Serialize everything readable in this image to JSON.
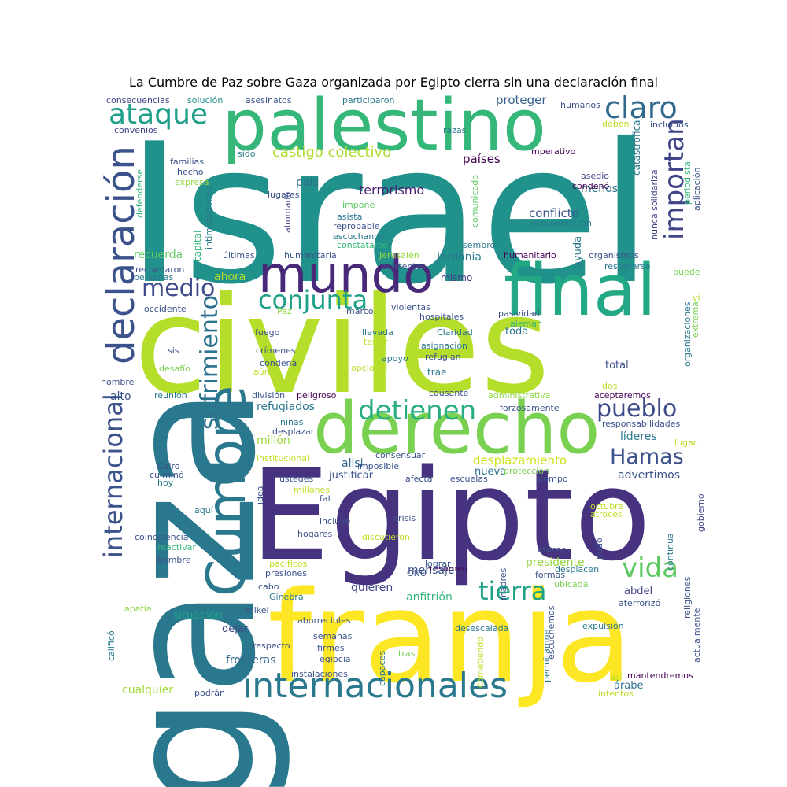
{
  "title": "La Cumbre de Paz sobre Gaza organizada por Egipto cierra sin una declaración final",
  "words": [
    {
      "t": "Israel",
      "c": "#21918c"
    },
    {
      "t": "civiles",
      "c": "#b5de2b"
    },
    {
      "t": "Egipto",
      "c": "#46327e"
    },
    {
      "t": "gaza",
      "c": "#2a788e"
    },
    {
      "t": "franja",
      "c": "#fde725"
    },
    {
      "t": "palestino",
      "c": "#35b779"
    },
    {
      "t": "derecho",
      "c": "#7ad151"
    },
    {
      "t": "final",
      "c": "#22a884"
    },
    {
      "t": "mundo",
      "c": "#482878"
    },
    {
      "t": "Cumbre",
      "c": "#2a788e"
    },
    {
      "t": "declaración",
      "c": "#3b528b"
    },
    {
      "t": "internacionales",
      "c": "#2a788e"
    },
    {
      "t": "internacional",
      "c": "#3b528b"
    },
    {
      "t": "sufrimiento",
      "c": "#2c728e"
    },
    {
      "t": "claro",
      "c": "#31688e"
    },
    {
      "t": "importan",
      "c": "#414487"
    },
    {
      "t": "conjunta",
      "c": "#1fa088"
    },
    {
      "t": "ataque",
      "c": "#1f9e89"
    },
    {
      "t": "detienen",
      "c": "#27ad81"
    },
    {
      "t": "medio",
      "c": "#3e4a89"
    },
    {
      "t": "pueblo",
      "c": "#3e4989"
    },
    {
      "t": "Hamas",
      "c": "#3b528b"
    },
    {
      "t": "vida",
      "c": "#5ec962"
    },
    {
      "t": "tierra",
      "c": "#1fa187"
    },
    {
      "t": "castigo colectivo",
      "c": "#addc30"
    },
    {
      "t": "terrorismo",
      "c": "#481f70"
    },
    {
      "t": "Jordania",
      "c": "#2a788e"
    },
    {
      "t": "recuerda",
      "c": "#5ec962"
    },
    {
      "t": "conflicto",
      "c": "#3b528b"
    },
    {
      "t": "proteger",
      "c": "#355f8d"
    },
    {
      "t": "países",
      "c": "#440154"
    },
    {
      "t": "país",
      "c": "#2d708e"
    },
    {
      "t": "menos",
      "c": "#2c728e"
    },
    {
      "t": "ahora",
      "c": "#b8de29"
    },
    {
      "t": "refugiados",
      "c": "#2a788e"
    },
    {
      "t": "millón",
      "c": "#9bd93c"
    },
    {
      "t": "alto",
      "c": "#3b528b"
    },
    {
      "t": "líderes",
      "c": "#2a788e"
    },
    {
      "t": "desplazamiento",
      "c": "#d0e11c"
    },
    {
      "t": "advertimos",
      "c": "#3b528b"
    },
    {
      "t": "alisi",
      "c": "#31688e"
    },
    {
      "t": "justificar",
      "c": "#3b528b"
    },
    {
      "t": "nueva",
      "c": "#2c728e"
    },
    {
      "t": "presidente",
      "c": "#95d840"
    },
    {
      "t": "quieren",
      "c": "#414487"
    },
    {
      "t": "anfitrión",
      "c": "#35b779"
    },
    {
      "t": "mensaje",
      "c": "#3b528b"
    },
    {
      "t": "abdel",
      "c": "#414487"
    },
    {
      "t": "situación",
      "c": "#1fa088"
    },
    {
      "t": "dejar",
      "c": "#3e4a89"
    },
    {
      "t": "fronteras",
      "c": "#31688e"
    },
    {
      "t": "cualquier",
      "c": "#a0da39"
    },
    {
      "t": "árabe",
      "c": "#2c728e"
    },
    {
      "t": "mismo",
      "c": "#433e85"
    },
    {
      "t": "toda",
      "c": "#2c728e"
    },
    {
      "t": "total",
      "c": "#3b528b"
    },
    {
      "t": "trae",
      "c": "#2a788e"
    },
    {
      "t": "capital",
      "c": "#35b779"
    },
    {
      "t": "ayuda",
      "c": "#2a788e"
    },
    {
      "t": "catastrófica",
      "c": "#2a788e"
    },
    {
      "t": "consecuencias",
      "c": "#414487"
    },
    {
      "t": "solución",
      "c": "#21918c"
    },
    {
      "t": "asesinatos",
      "c": "#3b528b"
    },
    {
      "t": "participaron",
      "c": "#2a788e"
    },
    {
      "t": "humanos",
      "c": "#3b528b"
    },
    {
      "t": "convenios",
      "c": "#414487"
    },
    {
      "t": "razas",
      "c": "#2a788e"
    },
    {
      "t": "deben",
      "c": "#bddf26"
    },
    {
      "t": "incluidos",
      "c": "#3b528b"
    },
    {
      "t": "imperativo",
      "c": "#440154"
    },
    {
      "t": "familias",
      "c": "#3b528b"
    },
    {
      "t": "hecho",
      "c": "#3b528b"
    },
    {
      "t": "expresa",
      "c": "#8fd744"
    },
    {
      "t": "sido",
      "c": "#2a788e"
    },
    {
      "t": "asedio",
      "c": "#414487"
    },
    {
      "t": "condenó",
      "c": "#440154"
    },
    {
      "t": "lugares",
      "c": "#3b528b"
    },
    {
      "t": "impone",
      "c": "#5ec962"
    },
    {
      "t": "asista",
      "c": "#2a788e"
    },
    {
      "t": "reprobable",
      "c": "#3b528b"
    },
    {
      "t": "escuchando",
      "c": "#2a788e"
    },
    {
      "t": "constatarse",
      "c": "#35b779"
    },
    {
      "t": "estupefacción",
      "c": "#2a788e"
    },
    {
      "t": "comunicado",
      "c": "#5ec962"
    },
    {
      "t": "nunca solidariza",
      "c": "#414487"
    },
    {
      "t": "periodista",
      "c": "#35b779"
    },
    {
      "t": "aplicación",
      "c": "#3b528b"
    },
    {
      "t": "defenderse",
      "c": "#35b779"
    },
    {
      "t": "intimidaciones",
      "c": "#2a788e"
    },
    {
      "t": "abordado",
      "c": "#414487"
    },
    {
      "t": "últimas",
      "c": "#3b528b"
    },
    {
      "t": "humanitaria",
      "c": "#3b528b"
    },
    {
      "t": "Jerusalén",
      "c": "#95d840"
    },
    {
      "t": "humanitario",
      "c": "#440154"
    },
    {
      "t": "organismos",
      "c": "#3b528b"
    },
    {
      "t": "sembró",
      "c": "#2a788e"
    },
    {
      "t": "asistentes",
      "c": "#3b528b"
    },
    {
      "t": "respetarse",
      "c": "#2a788e"
    },
    {
      "t": "reclamaron",
      "c": "#3b528b"
    },
    {
      "t": "personas",
      "c": "#2a788e"
    },
    {
      "t": "puede",
      "c": "#7ad151"
    },
    {
      "t": "violentas",
      "c": "#3b528b"
    },
    {
      "t": "Paz",
      "c": "#8fd744"
    },
    {
      "t": "marco",
      "c": "#3b528b"
    },
    {
      "t": "hospitales",
      "c": "#3b528b"
    },
    {
      "t": "pasividad",
      "c": "#3b528b"
    },
    {
      "t": "alemán",
      "c": "#35b779"
    },
    {
      "t": "vi",
      "c": "#b8de29"
    },
    {
      "t": "occidente",
      "c": "#3b528b"
    },
    {
      "t": "fuego",
      "c": "#3b528b"
    },
    {
      "t": "llevada",
      "c": "#2a788e"
    },
    {
      "t": "terror",
      "c": "#bddf26"
    },
    {
      "t": "Claridad",
      "c": "#2a788e"
    },
    {
      "t": "asignación",
      "c": "#2a788e"
    },
    {
      "t": "refugian",
      "c": "#3b528b"
    },
    {
      "t": "crímenes",
      "c": "#3b528b"
    },
    {
      "t": "condena",
      "c": "#3b528b"
    },
    {
      "t": "apoyo",
      "c": "#2a788e"
    },
    {
      "t": "opcional",
      "c": "#bddf26"
    },
    {
      "t": "extrema",
      "c": "#7ad151"
    },
    {
      "t": "organizaciones",
      "c": "#2a788e"
    },
    {
      "t": "sis",
      "c": "#3b528b"
    },
    {
      "t": "desafío",
      "c": "#7ad151"
    },
    {
      "t": "nombre",
      "c": "#3b528b"
    },
    {
      "t": "aún",
      "c": "#bddf26"
    },
    {
      "t": "reunión",
      "c": "#2a788e"
    },
    {
      "t": "división",
      "c": "#3b528b"
    },
    {
      "t": "peligroso",
      "c": "#440154"
    },
    {
      "t": "causante",
      "c": "#3b528b"
    },
    {
      "t": "administrativa",
      "c": "#8fd744"
    },
    {
      "t": "dos",
      "c": "#b8de29"
    },
    {
      "t": "aceptaremos",
      "c": "#440154"
    },
    {
      "t": "forzosamente",
      "c": "#3b528b"
    },
    {
      "t": "responsabilidades",
      "c": "#3b528b"
    },
    {
      "t": "niñas",
      "c": "#2a788e"
    },
    {
      "t": "desplazar",
      "c": "#3b528b"
    },
    {
      "t": "lugar",
      "c": "#b8de29"
    },
    {
      "t": "institucional",
      "c": "#bddf26"
    },
    {
      "t": "consensuar",
      "c": "#3b528b"
    },
    {
      "t": "imposible",
      "c": "#3b528b"
    },
    {
      "t": "Cairo",
      "c": "#3b528b"
    },
    {
      "t": "culminó",
      "c": "#3b528b"
    },
    {
      "t": "hoy",
      "c": "#2a788e"
    },
    {
      "t": "ustedes",
      "c": "#3b528b"
    },
    {
      "t": "afecta",
      "c": "#3b528b"
    },
    {
      "t": "escuelas",
      "c": "#3b528b"
    },
    {
      "t": "protección",
      "c": "#7ad151"
    },
    {
      "t": "tiempo",
      "c": "#3b528b"
    },
    {
      "t": "idea",
      "c": "#3b528b"
    },
    {
      "t": "millones",
      "c": "#bddf26"
    },
    {
      "t": "fat",
      "c": "#3b528b"
    },
    {
      "t": "octubre",
      "c": "#bddf26"
    },
    {
      "t": "atroces",
      "c": "#bddf26"
    },
    {
      "t": "aquí",
      "c": "#2a788e"
    },
    {
      "t": "incluye",
      "c": "#3b528b"
    },
    {
      "t": "crisis",
      "c": "#3b528b"
    },
    {
      "t": "coincidencia",
      "c": "#3b528b"
    },
    {
      "t": "hogares",
      "c": "#3b528b"
    },
    {
      "t": "discutieron",
      "c": "#bddf26"
    },
    {
      "t": "gobierno",
      "c": "#414487"
    },
    {
      "t": "reactivar",
      "c": "#35b779"
    },
    {
      "t": "atacar",
      "c": "#3b528b"
    },
    {
      "t": "pudo",
      "c": "#3b528b"
    },
    {
      "t": "hambre",
      "c": "#3b528b"
    },
    {
      "t": "pacíficos",
      "c": "#bddf26"
    },
    {
      "t": "lograr",
      "c": "#3b528b"
    },
    {
      "t": "continua",
      "c": "#2a788e"
    },
    {
      "t": "presiones",
      "c": "#3b528b"
    },
    {
      "t": "ONU",
      "c": "#3b528b"
    },
    {
      "t": "resumen",
      "c": "#440154"
    },
    {
      "t": "madres",
      "c": "#3b528b"
    },
    {
      "t": "formas",
      "c": "#3b528b"
    },
    {
      "t": "desplacen",
      "c": "#2a788e"
    },
    {
      "t": "cabo",
      "c": "#3b528b"
    },
    {
      "t": "Ginebra",
      "c": "#2a788e"
    },
    {
      "t": "ubicada",
      "c": "#7ad151"
    },
    {
      "t": "religiones",
      "c": "#3b528b"
    },
    {
      "t": "apatía",
      "c": "#8fd744"
    },
    {
      "t": "mikel",
      "c": "#3b528b"
    },
    {
      "t": "aborrecibles",
      "c": "#3b528b"
    },
    {
      "t": "aterrorizó",
      "c": "#3b528b"
    },
    {
      "t": "escuchemos",
      "c": "#3b528b"
    },
    {
      "t": "calificó",
      "c": "#2a788e"
    },
    {
      "t": "expulsión",
      "c": "#2a788e"
    },
    {
      "t": "desescalada",
      "c": "#2a788e"
    },
    {
      "t": "actualmente",
      "c": "#3b528b"
    },
    {
      "t": "semanas",
      "c": "#3b528b"
    },
    {
      "t": "respecto",
      "c": "#3b528b"
    },
    {
      "t": "firmes",
      "c": "#3b528b"
    },
    {
      "t": "egipcia",
      "c": "#3b528b"
    },
    {
      "t": "capaces",
      "c": "#2a788e"
    },
    {
      "t": "tras",
      "c": "#7ad151"
    },
    {
      "t": "cometiendo",
      "c": "#bddf26"
    },
    {
      "t": "permitamne",
      "c": "#2a788e"
    },
    {
      "t": "instalaciones",
      "c": "#3b528b"
    },
    {
      "t": "así",
      "c": "#bddf26"
    },
    {
      "t": "mantendremos",
      "c": "#440154"
    },
    {
      "t": "podrán",
      "c": "#3b528b"
    },
    {
      "t": "intentos",
      "c": "#bddf26"
    }
  ]
}
